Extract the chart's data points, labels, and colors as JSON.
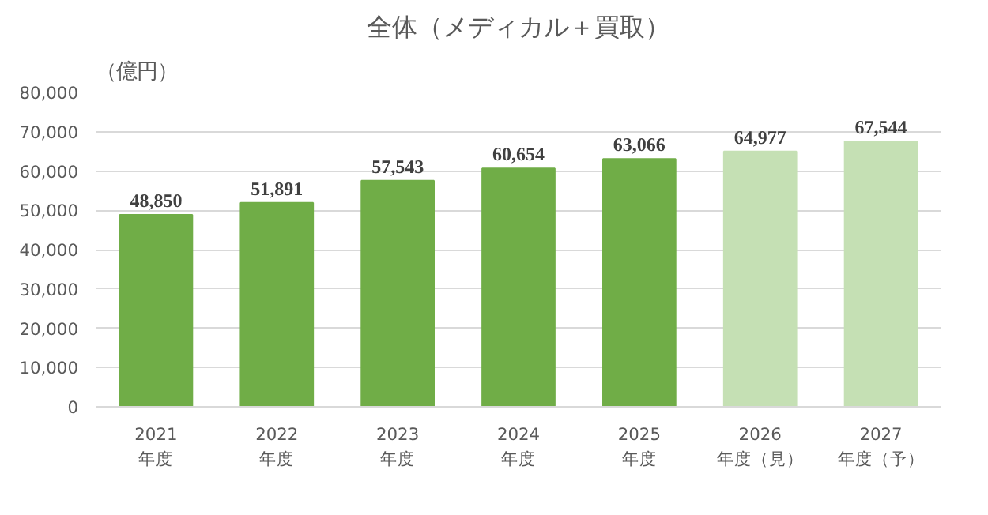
{
  "chart_data": {
    "type": "bar",
    "title": "全体（メディカル＋買取）",
    "ylabel": "（億円）",
    "categories": [
      "2021\n年度",
      "2022\n年度",
      "2023\n年度",
      "2024\n年度",
      "2025\n年度",
      "2026\n年度（見）",
      "2027\n年度（予）"
    ],
    "values": [
      48850,
      51891,
      57543,
      60654,
      63066,
      64977,
      67544
    ],
    "colors": [
      "#70ad47",
      "#70ad47",
      "#70ad47",
      "#70ad47",
      "#70ad47",
      "#c5e0b4",
      "#c5e0b4"
    ],
    "value_labels": [
      "48,850",
      "51,891",
      "57,543",
      "60,654",
      "63,066",
      "64,977",
      "67,544"
    ],
    "ylim": [
      0,
      80000
    ],
    "yticks": [
      {
        "value": 0,
        "label": "0"
      },
      {
        "value": 10000,
        "label": "10,000"
      },
      {
        "value": 20000,
        "label": "20,000"
      },
      {
        "value": 30000,
        "label": "30,000"
      },
      {
        "value": 40000,
        "label": "40,000"
      },
      {
        "value": 50000,
        "label": "50,000"
      },
      {
        "value": 60000,
        "label": "60,000"
      },
      {
        "value": 70000,
        "label": "70,000"
      },
      {
        "value": 80000,
        "label": "80,000"
      }
    ],
    "grid": "y"
  }
}
